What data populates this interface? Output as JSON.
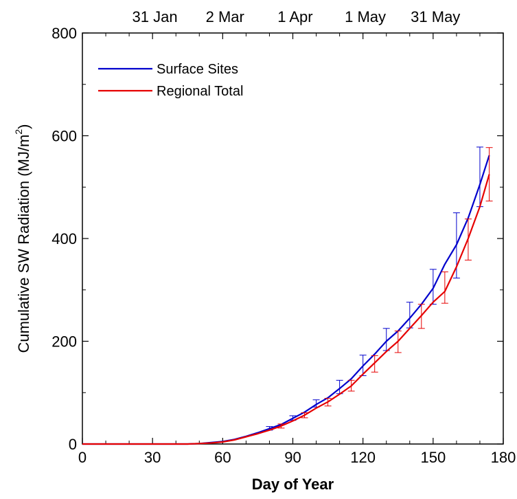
{
  "chart_data": {
    "type": "line",
    "xlabel": "Day of Year",
    "ylabel": "Cumulative SW Radiation (MJ/m",
    "ylabel_sup": "2",
    "ylabel_close": ")",
    "xlim": [
      0,
      180
    ],
    "ylim": [
      0,
      800
    ],
    "xticks": [
      0,
      30,
      60,
      90,
      120,
      150,
      180
    ],
    "yticks": [
      0,
      200,
      400,
      600,
      800
    ],
    "top_axis_labels": [
      {
        "x": 31,
        "label": "31 Jan"
      },
      {
        "x": 61,
        "label": "2 Mar"
      },
      {
        "x": 91,
        "label": "1 Apr"
      },
      {
        "x": 121,
        "label": "1 May"
      },
      {
        "x": 151,
        "label": "31 May"
      }
    ],
    "grid": false,
    "legend_position": "top-left",
    "series": [
      {
        "name": "Surface Sites",
        "color": "#0000cc",
        "x": [
          0,
          10,
          20,
          30,
          40,
          45,
          50,
          55,
          60,
          65,
          70,
          75,
          80,
          85,
          90,
          95,
          100,
          105,
          110,
          115,
          120,
          125,
          130,
          135,
          140,
          145,
          150,
          155,
          160,
          165,
          170,
          174
        ],
        "y": [
          0,
          0,
          0,
          0,
          0,
          0,
          1,
          3,
          5,
          9,
          15,
          22,
          30,
          38,
          50,
          62,
          77,
          90,
          108,
          127,
          152,
          175,
          200,
          220,
          245,
          272,
          303,
          350,
          388,
          440,
          505,
          562
        ],
        "error_bars": [
          {
            "x": 80,
            "low": 27,
            "high": 34
          },
          {
            "x": 90,
            "low": 46,
            "high": 55
          },
          {
            "x": 100,
            "low": 72,
            "high": 86
          },
          {
            "x": 110,
            "low": 98,
            "high": 124
          },
          {
            "x": 120,
            "low": 133,
            "high": 173
          },
          {
            "x": 130,
            "low": 182,
            "high": 225
          },
          {
            "x": 140,
            "low": 226,
            "high": 276
          },
          {
            "x": 150,
            "low": 272,
            "high": 340
          },
          {
            "x": 160,
            "low": 323,
            "high": 450
          },
          {
            "x": 170,
            "low": 462,
            "high": 578
          }
        ]
      },
      {
        "name": "Regional Total",
        "color": "#e60000",
        "x": [
          0,
          10,
          20,
          30,
          40,
          45,
          50,
          55,
          60,
          65,
          70,
          75,
          80,
          85,
          90,
          95,
          100,
          105,
          110,
          115,
          120,
          125,
          130,
          135,
          140,
          145,
          150,
          155,
          160,
          165,
          170,
          174
        ],
        "y": [
          0,
          0,
          0,
          0,
          0,
          0,
          1,
          2,
          4,
          8,
          14,
          20,
          27,
          35,
          45,
          56,
          70,
          82,
          97,
          113,
          136,
          158,
          180,
          200,
          225,
          250,
          276,
          297,
          345,
          400,
          462,
          525
        ],
        "error_bars": [
          {
            "x": 85,
            "low": 31,
            "high": 39
          },
          {
            "x": 95,
            "low": 51,
            "high": 61
          },
          {
            "x": 105,
            "low": 74,
            "high": 89
          },
          {
            "x": 115,
            "low": 103,
            "high": 124
          },
          {
            "x": 125,
            "low": 140,
            "high": 172
          },
          {
            "x": 135,
            "low": 178,
            "high": 220
          },
          {
            "x": 145,
            "low": 225,
            "high": 272
          },
          {
            "x": 155,
            "low": 274,
            "high": 335
          },
          {
            "x": 165,
            "low": 358,
            "high": 438
          },
          {
            "x": 174,
            "low": 473,
            "high": 577
          }
        ]
      }
    ]
  }
}
